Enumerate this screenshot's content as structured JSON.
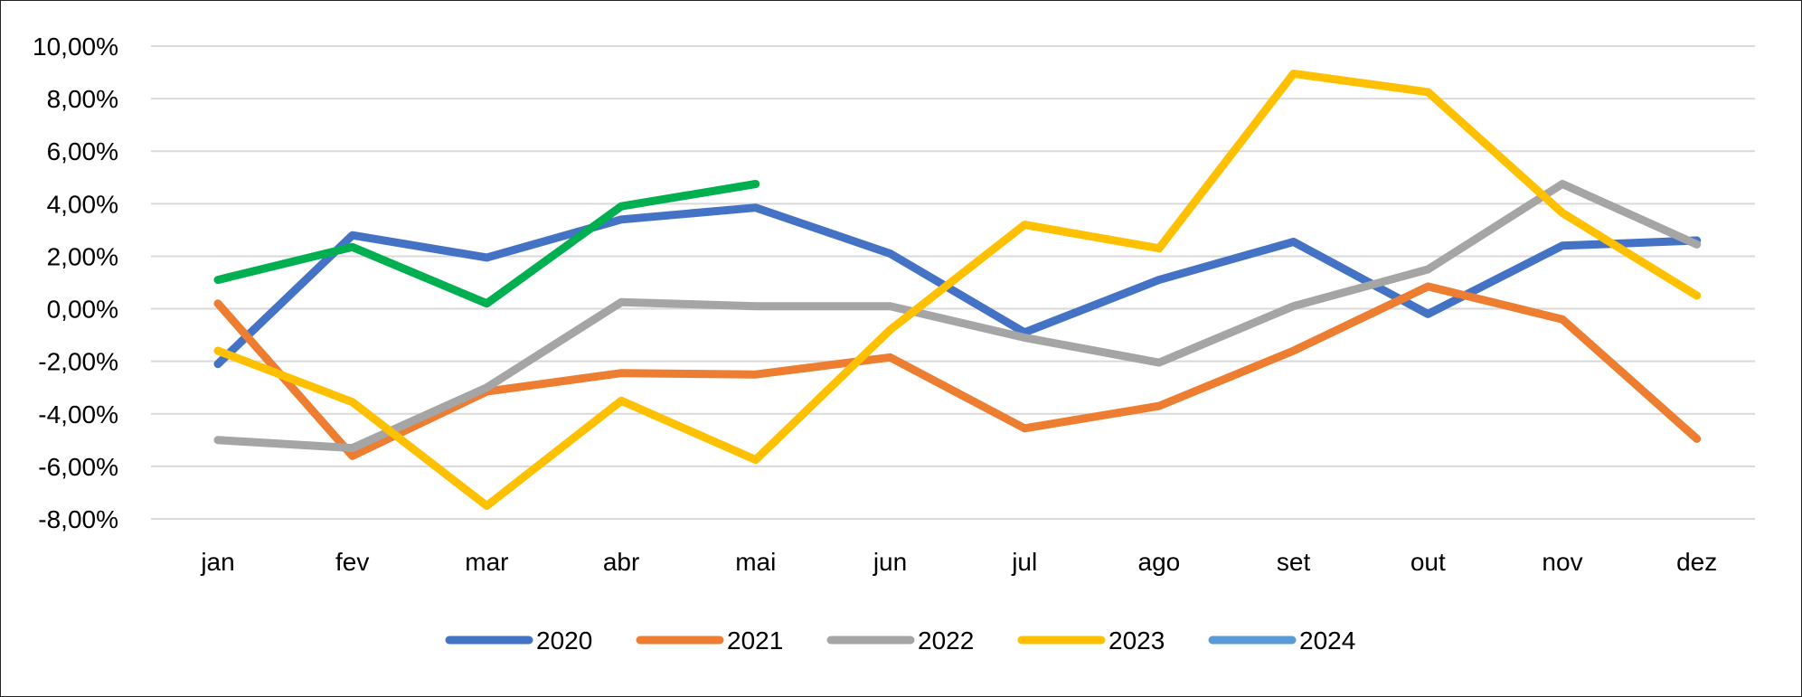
{
  "chart_data": {
    "type": "line",
    "title": "",
    "xlabel": "",
    "ylabel": "",
    "categories": [
      "jan",
      "fev",
      "mar",
      "abr",
      "mai",
      "jun",
      "jul",
      "ago",
      "set",
      "out",
      "nov",
      "dez"
    ],
    "ylim": [
      -8,
      10
    ],
    "yticks": [
      10,
      8,
      6,
      4,
      2,
      0,
      -2,
      -4,
      -6,
      -8
    ],
    "ytick_labels": [
      "10,00%",
      "8,00%",
      "6,00%",
      "4,00%",
      "2,00%",
      "0,00%",
      "-2,00%",
      "-4,00%",
      "-6,00%",
      "-8,00%"
    ],
    "grid": true,
    "legend_position": "bottom",
    "series": [
      {
        "name": "2020",
        "color": "#4472C4",
        "values": [
          -2.1,
          2.8,
          1.95,
          3.4,
          3.85,
          2.1,
          -0.9,
          1.1,
          2.55,
          -0.2,
          2.4,
          2.6
        ]
      },
      {
        "name": "2021",
        "color": "#ED7D31",
        "values": [
          0.2,
          -5.6,
          -3.15,
          -2.45,
          -2.5,
          -1.85,
          -4.55,
          -3.7,
          -1.6,
          0.85,
          -0.4,
          -4.95
        ]
      },
      {
        "name": "2022",
        "color": "#A5A5A5",
        "values": [
          -5.0,
          -5.3,
          -3.0,
          0.25,
          0.1,
          0.1,
          -1.1,
          -2.05,
          0.1,
          1.5,
          4.75,
          2.45
        ]
      },
      {
        "name": "2023",
        "color": "#FFC000",
        "values": [
          -1.6,
          -3.55,
          -7.5,
          -3.5,
          -5.75,
          -0.8,
          3.2,
          2.3,
          8.95,
          8.25,
          3.65,
          0.5
        ]
      },
      {
        "name": "2024",
        "color": "#5B9BD5",
        "values": [
          1.1,
          2.35,
          0.2,
          3.9,
          4.75,
          null,
          null,
          null,
          null,
          null,
          null,
          null
        ],
        "line_color": "#00B050"
      }
    ]
  }
}
